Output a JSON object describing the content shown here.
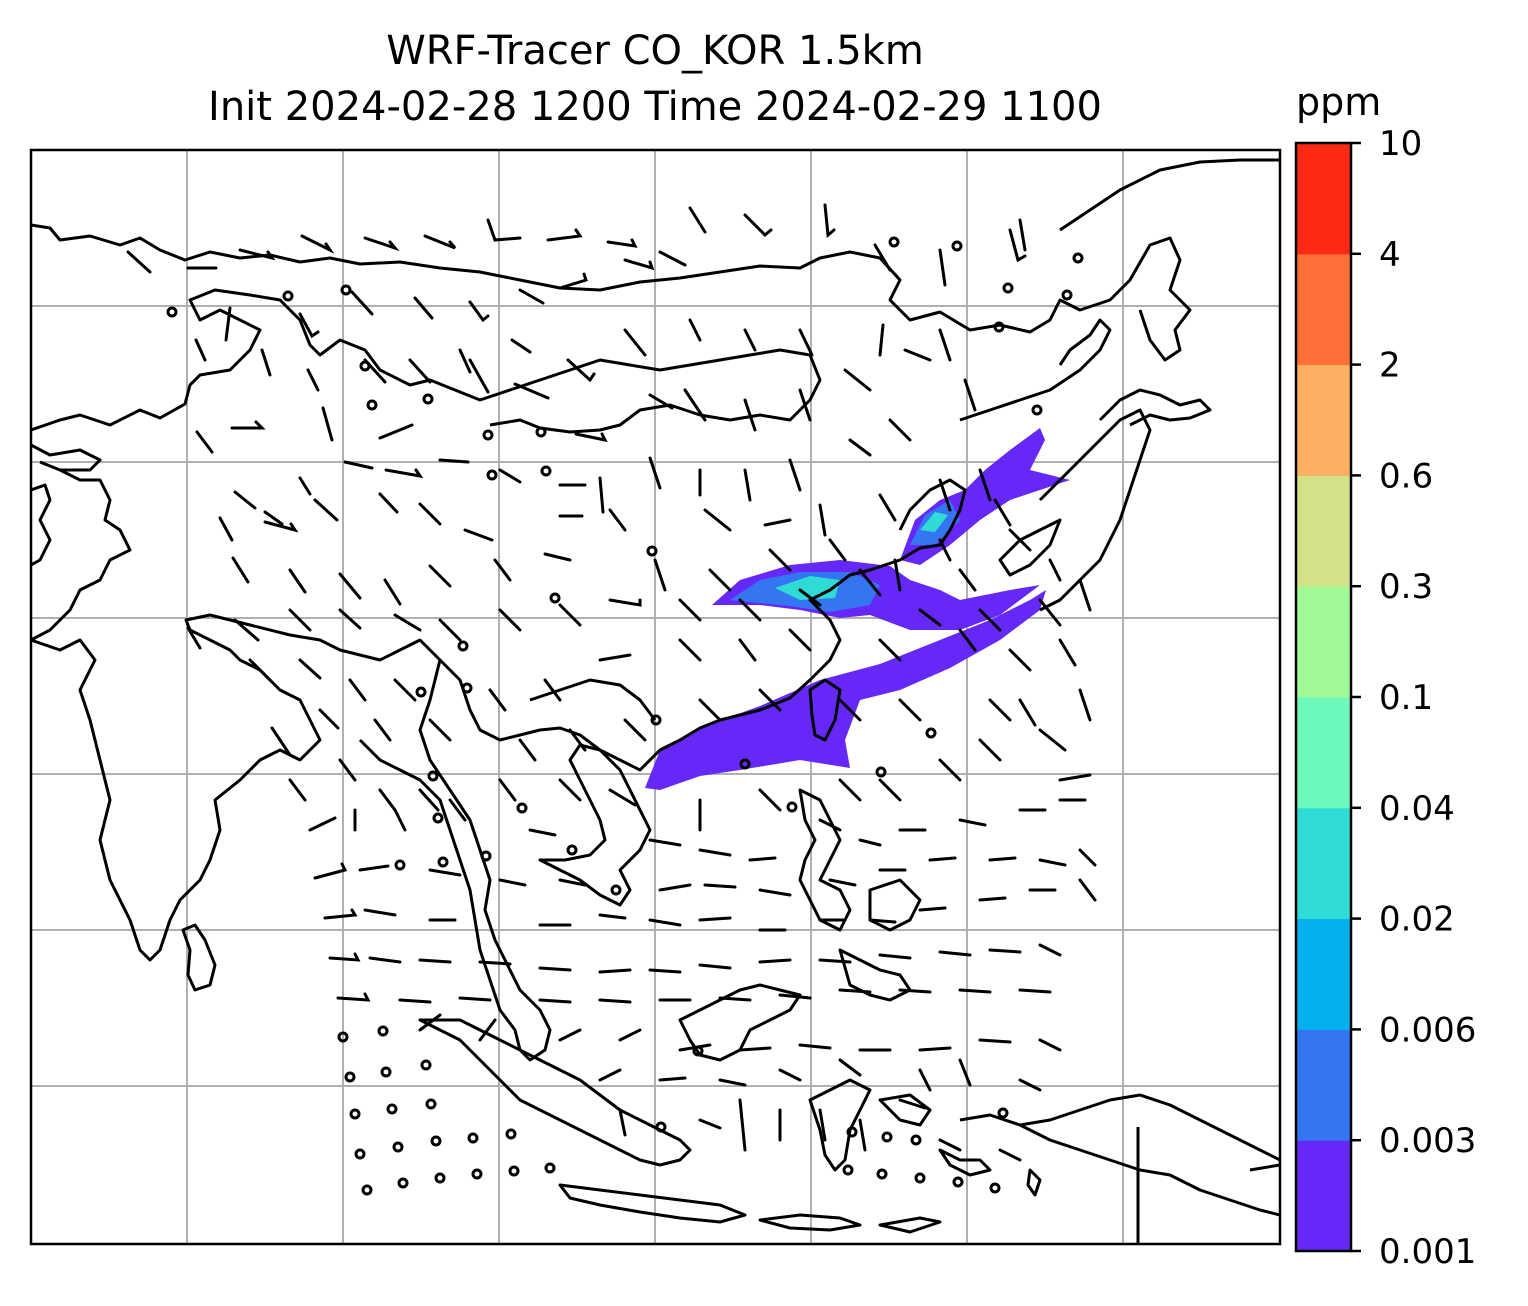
{
  "title": {
    "line1": "WRF-Tracer CO_KOR 1.5km",
    "line2": "Init 2024-02-28 1200 Time 2024-02-29 1100"
  },
  "colorbar": {
    "unit": "ppm",
    "levels": [
      "0.001",
      "0.003",
      "0.006",
      "0.02",
      "0.04",
      "0.1",
      "0.3",
      "0.6",
      "2",
      "4",
      "10"
    ],
    "colors": [
      "#6528f7",
      "#3476f2",
      "#05b0ee",
      "#2fdcd5",
      "#6df9bc",
      "#a0fb96",
      "#d1e288",
      "#fdb061",
      "#ff7039",
      "#ff2a16"
    ]
  },
  "map": {
    "gridlines": true,
    "colors": {
      "grid": "#b0b0b0",
      "coast": "#000000",
      "plume_low": "#6528f7",
      "plume_mid": "#3476f2",
      "plume_high": "#2fdcd5"
    }
  }
}
